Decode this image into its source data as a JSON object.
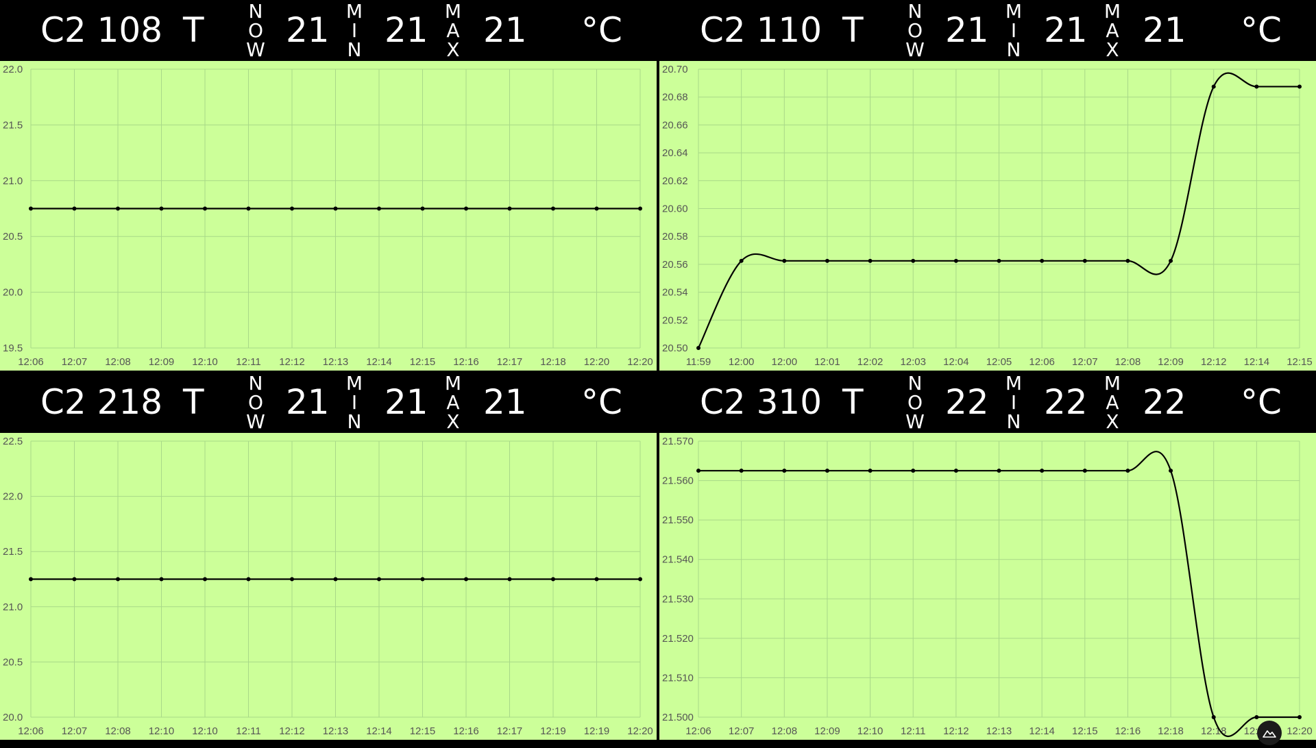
{
  "panels": [
    {
      "room": "C2 108",
      "metric": "T",
      "now_label": "NOW",
      "now": "21",
      "min_label": "MIN",
      "min": "21",
      "max_label": "MAX",
      "max": "21",
      "unit": "°C",
      "chart_data": {
        "type": "line",
        "x": [
          "12:06",
          "12:07",
          "12:08",
          "12:09",
          "12:10",
          "12:11",
          "12:12",
          "12:13",
          "12:14",
          "12:15",
          "12:16",
          "12:17",
          "12:18",
          "12:20",
          "12:20"
        ],
        "series": [
          {
            "values": [
              20.75,
              20.75,
              20.75,
              20.75,
              20.75,
              20.75,
              20.75,
              20.75,
              20.75,
              20.75,
              20.75,
              20.75,
              20.75,
              20.75,
              20.75
            ]
          }
        ],
        "y_ticks": [
          "22.0",
          "21.5",
          "21.0",
          "20.5",
          "20.0",
          "19.5"
        ],
        "ylim": [
          19.5,
          22.0
        ],
        "grid": true,
        "line_color": "#000000",
        "background": "#ccff99"
      }
    },
    {
      "room": "C2 110",
      "metric": "T",
      "now_label": "NOW",
      "now": "21",
      "min_label": "MIN",
      "min": "21",
      "max_label": "MAX",
      "max": "21",
      "unit": "°C",
      "chart_data": {
        "type": "line",
        "x": [
          "11:59",
          "12:00",
          "12:00",
          "12:01",
          "12:02",
          "12:03",
          "12:04",
          "12:05",
          "12:06",
          "12:07",
          "12:08",
          "12:09",
          "12:12",
          "12:14",
          "12:15"
        ],
        "series": [
          {
            "values": [
              20.5,
              20.5625,
              20.5625,
              20.5625,
              20.5625,
              20.5625,
              20.5625,
              20.5625,
              20.5625,
              20.5625,
              20.5625,
              20.5625,
              20.6875,
              20.6875,
              20.6875
            ]
          }
        ],
        "y_ticks": [
          "20.70",
          "20.68",
          "20.66",
          "20.64",
          "20.62",
          "20.60",
          "20.58",
          "20.56",
          "20.54",
          "20.52",
          "20.50"
        ],
        "ylim": [
          20.5,
          20.7
        ],
        "grid": true,
        "line_color": "#000000",
        "background": "#ccff99"
      }
    },
    {
      "room": "C2 218",
      "metric": "T",
      "now_label": "NOW",
      "now": "21",
      "min_label": "MIN",
      "min": "21",
      "max_label": "MAX",
      "max": "21",
      "unit": "°C",
      "chart_data": {
        "type": "line",
        "x": [
          "12:06",
          "12:07",
          "12:08",
          "12:10",
          "12:10",
          "12:11",
          "12:12",
          "12:13",
          "12:14",
          "12:15",
          "12:16",
          "12:17",
          "12:19",
          "12:19",
          "12:20"
        ],
        "series": [
          {
            "values": [
              21.25,
              21.25,
              21.25,
              21.25,
              21.25,
              21.25,
              21.25,
              21.25,
              21.25,
              21.25,
              21.25,
              21.25,
              21.25,
              21.25,
              21.25
            ]
          }
        ],
        "y_ticks": [
          "22.5",
          "22.0",
          "21.5",
          "21.0",
          "20.5",
          "20.0"
        ],
        "ylim": [
          20.0,
          22.5
        ],
        "grid": true,
        "line_color": "#000000",
        "background": "#ccff99"
      }
    },
    {
      "room": "C2 310",
      "metric": "T",
      "now_label": "NOW",
      "now": "22",
      "min_label": "MIN",
      "min": "22",
      "max_label": "MAX",
      "max": "22",
      "unit": "°C",
      "chart_data": {
        "type": "line",
        "x": [
          "12:06",
          "12:07",
          "12:08",
          "12:09",
          "12:10",
          "12:11",
          "12:12",
          "12:13",
          "12:14",
          "12:15",
          "12:16",
          "12:18",
          "12:18",
          "12:20",
          "12:20"
        ],
        "series": [
          {
            "values": [
              21.5625,
              21.5625,
              21.5625,
              21.5625,
              21.5625,
              21.5625,
              21.5625,
              21.5625,
              21.5625,
              21.5625,
              21.5625,
              21.5625,
              21.5,
              21.5,
              21.5
            ]
          }
        ],
        "y_ticks": [
          "21.570",
          "21.560",
          "21.550",
          "21.540",
          "21.530",
          "21.520",
          "21.510",
          "21.500"
        ],
        "ylim": [
          21.5,
          21.57
        ],
        "grid": true,
        "line_color": "#000000",
        "background": "#ccff99"
      }
    }
  ],
  "corner_icon": "mountain-logo-icon"
}
